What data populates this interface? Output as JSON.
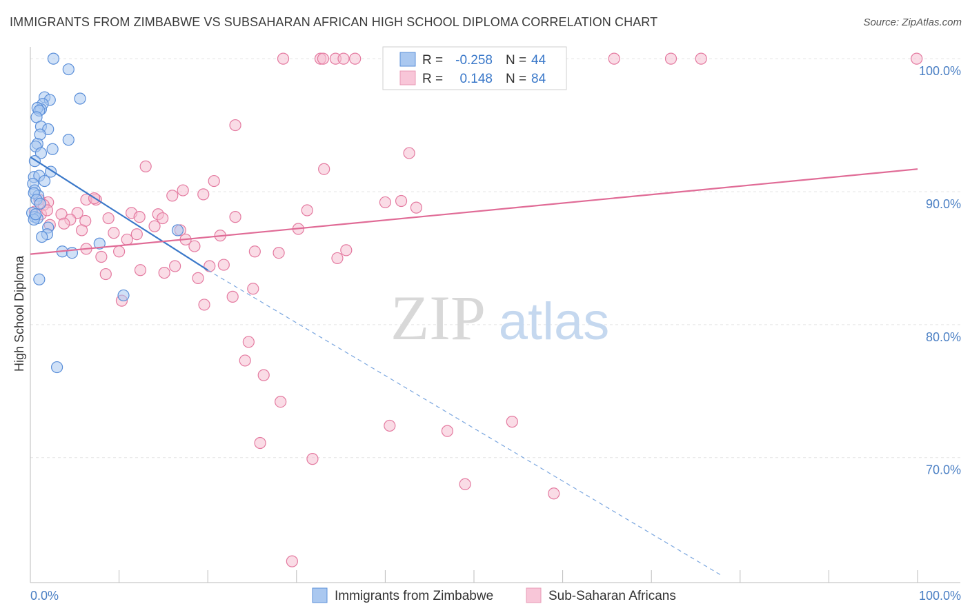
{
  "title": "IMMIGRANTS FROM ZIMBABWE VS SUBSAHARAN AFRICAN HIGH SCHOOL DIPLOMA CORRELATION CHART",
  "source": "Source: ZipAtlas.com",
  "watermark": {
    "zip": "ZIP",
    "atlas": "atlas"
  },
  "stats": [
    {
      "r_label": "R =",
      "r_value": "-0.258",
      "n_label": "N =",
      "n_value": "44"
    },
    {
      "r_label": "R =",
      "r_value": "0.148",
      "n_label": "N =",
      "n_value": "84"
    }
  ],
  "chart_data": {
    "type": "scatter",
    "title": "IMMIGRANTS FROM ZIMBABWE VS SUBSAHARAN AFRICAN HIGH SCHOOL DIPLOMA CORRELATION CHART",
    "xlabel": "",
    "ylabel": "High School Diploma",
    "xlim": [
      0,
      100
    ],
    "ylim": [
      60.6,
      101.2
    ],
    "x_tick_labels": [
      "0.0%",
      "100.0%"
    ],
    "y_ticks": [
      70,
      80,
      90,
      100
    ],
    "y_tick_labels": [
      "70.0%",
      "80.0%",
      "90.0%",
      "100.0%"
    ],
    "grid": true,
    "legend_position": "bottom",
    "colors": {
      "zimbabwe": "#5b8fd9",
      "subsaharan": "#e47aa0",
      "tick_text": "#4a7fc4"
    },
    "series": [
      {
        "name": "Immigrants from Zimbabwe",
        "color": "#5b8fd9",
        "fill": "#aac8f0",
        "trend": {
          "x0": 0,
          "y0": 92.6,
          "x1": 20,
          "y1": 84.1,
          "dashed_to_x": 78,
          "dashed_to_y": 61.1
        },
        "points": [
          [
            2.6,
            100.0
          ],
          [
            4.3,
            99.2
          ],
          [
            5.6,
            97.0
          ],
          [
            1.6,
            97.1
          ],
          [
            2.2,
            96.9
          ],
          [
            1.4,
            96.6
          ],
          [
            1.2,
            96.2
          ],
          [
            0.8,
            96.3
          ],
          [
            1.0,
            96.1
          ],
          [
            0.7,
            95.6
          ],
          [
            1.2,
            94.9
          ],
          [
            2.0,
            94.7
          ],
          [
            1.1,
            94.3
          ],
          [
            4.3,
            93.9
          ],
          [
            0.8,
            93.6
          ],
          [
            0.6,
            93.4
          ],
          [
            2.5,
            93.2
          ],
          [
            1.2,
            92.9
          ],
          [
            0.5,
            92.3
          ],
          [
            0.4,
            91.1
          ],
          [
            2.3,
            91.5
          ],
          [
            1.0,
            91.2
          ],
          [
            1.6,
            90.8
          ],
          [
            0.3,
            90.6
          ],
          [
            0.5,
            90.1
          ],
          [
            0.9,
            89.7
          ],
          [
            0.4,
            89.9
          ],
          [
            0.7,
            89.4
          ],
          [
            1.1,
            89.1
          ],
          [
            0.2,
            88.4
          ],
          [
            0.5,
            88.1
          ],
          [
            0.8,
            88.0
          ],
          [
            0.4,
            87.9
          ],
          [
            2.0,
            87.3
          ],
          [
            16.6,
            87.1
          ],
          [
            1.9,
            86.8
          ],
          [
            1.3,
            86.6
          ],
          [
            7.8,
            86.1
          ],
          [
            3.6,
            85.5
          ],
          [
            4.7,
            85.4
          ],
          [
            1.0,
            83.4
          ],
          [
            10.5,
            82.2
          ],
          [
            3.0,
            76.8
          ],
          [
            0.6,
            88.3
          ]
        ]
      },
      {
        "name": "Sub-Saharan Africans",
        "color": "#e47aa0",
        "fill": "#f5bfd2",
        "trend": {
          "x0": 0,
          "y0": 85.3,
          "x1": 100,
          "y1": 91.7
        },
        "points": [
          [
            28.5,
            100.0
          ],
          [
            32.7,
            100.0
          ],
          [
            33.0,
            100.0
          ],
          [
            34.4,
            100.0
          ],
          [
            35.3,
            100.0
          ],
          [
            36.6,
            100.0
          ],
          [
            50.0,
            100.0
          ],
          [
            65.8,
            100.0
          ],
          [
            72.2,
            100.0
          ],
          [
            75.6,
            100.0
          ],
          [
            99.9,
            100.0
          ],
          [
            23.1,
            95.0
          ],
          [
            42.7,
            92.9
          ],
          [
            13.0,
            91.9
          ],
          [
            33.1,
            91.7
          ],
          [
            20.7,
            90.8
          ],
          [
            17.2,
            90.1
          ],
          [
            19.5,
            89.8
          ],
          [
            16.0,
            89.7
          ],
          [
            7.4,
            89.4
          ],
          [
            6.3,
            89.4
          ],
          [
            2.0,
            89.2
          ],
          [
            1.0,
            89.4
          ],
          [
            1.5,
            89.0
          ],
          [
            40.0,
            89.2
          ],
          [
            41.8,
            89.3
          ],
          [
            43.5,
            88.8
          ],
          [
            31.2,
            88.6
          ],
          [
            0.5,
            88.5
          ],
          [
            1.2,
            88.3
          ],
          [
            1.9,
            88.6
          ],
          [
            3.5,
            88.3
          ],
          [
            5.3,
            88.4
          ],
          [
            11.4,
            88.4
          ],
          [
            14.4,
            88.3
          ],
          [
            14.9,
            88.0
          ],
          [
            23.1,
            88.1
          ],
          [
            8.8,
            88.0
          ],
          [
            4.5,
            87.9
          ],
          [
            6.2,
            87.8
          ],
          [
            2.2,
            87.5
          ],
          [
            3.8,
            87.6
          ],
          [
            14.0,
            87.4
          ],
          [
            16.9,
            87.1
          ],
          [
            30.2,
            87.2
          ],
          [
            5.8,
            87.1
          ],
          [
            9.4,
            86.9
          ],
          [
            12.0,
            86.8
          ],
          [
            21.4,
            86.7
          ],
          [
            10.9,
            86.4
          ],
          [
            17.5,
            86.4
          ],
          [
            18.5,
            85.9
          ],
          [
            6.3,
            85.7
          ],
          [
            10.0,
            85.5
          ],
          [
            25.3,
            85.5
          ],
          [
            28.0,
            85.4
          ],
          [
            35.6,
            85.6
          ],
          [
            34.6,
            85.0
          ],
          [
            8.0,
            85.1
          ],
          [
            16.3,
            84.4
          ],
          [
            20.2,
            84.4
          ],
          [
            21.8,
            84.5
          ],
          [
            12.4,
            84.1
          ],
          [
            15.1,
            83.9
          ],
          [
            8.5,
            83.8
          ],
          [
            18.9,
            83.5
          ],
          [
            25.1,
            82.7
          ],
          [
            22.8,
            82.1
          ],
          [
            10.3,
            81.8
          ],
          [
            19.6,
            81.5
          ],
          [
            24.6,
            78.7
          ],
          [
            24.2,
            77.3
          ],
          [
            26.3,
            76.2
          ],
          [
            28.2,
            74.2
          ],
          [
            40.5,
            72.4
          ],
          [
            54.3,
            72.7
          ],
          [
            47.0,
            72.0
          ],
          [
            25.9,
            71.1
          ],
          [
            31.8,
            69.9
          ],
          [
            49.0,
            68.0
          ],
          [
            59.0,
            67.3
          ],
          [
            29.5,
            62.2
          ],
          [
            7.2,
            89.5
          ],
          [
            12.3,
            88.1
          ]
        ]
      }
    ]
  },
  "legend": [
    {
      "label": "Immigrants from Zimbabwe",
      "fill": "#aac8f0",
      "stroke": "#5b8fd9"
    },
    {
      "label": "Sub-Saharan Africans",
      "fill": "#f8c6d8",
      "stroke": "#e89ab6"
    }
  ]
}
